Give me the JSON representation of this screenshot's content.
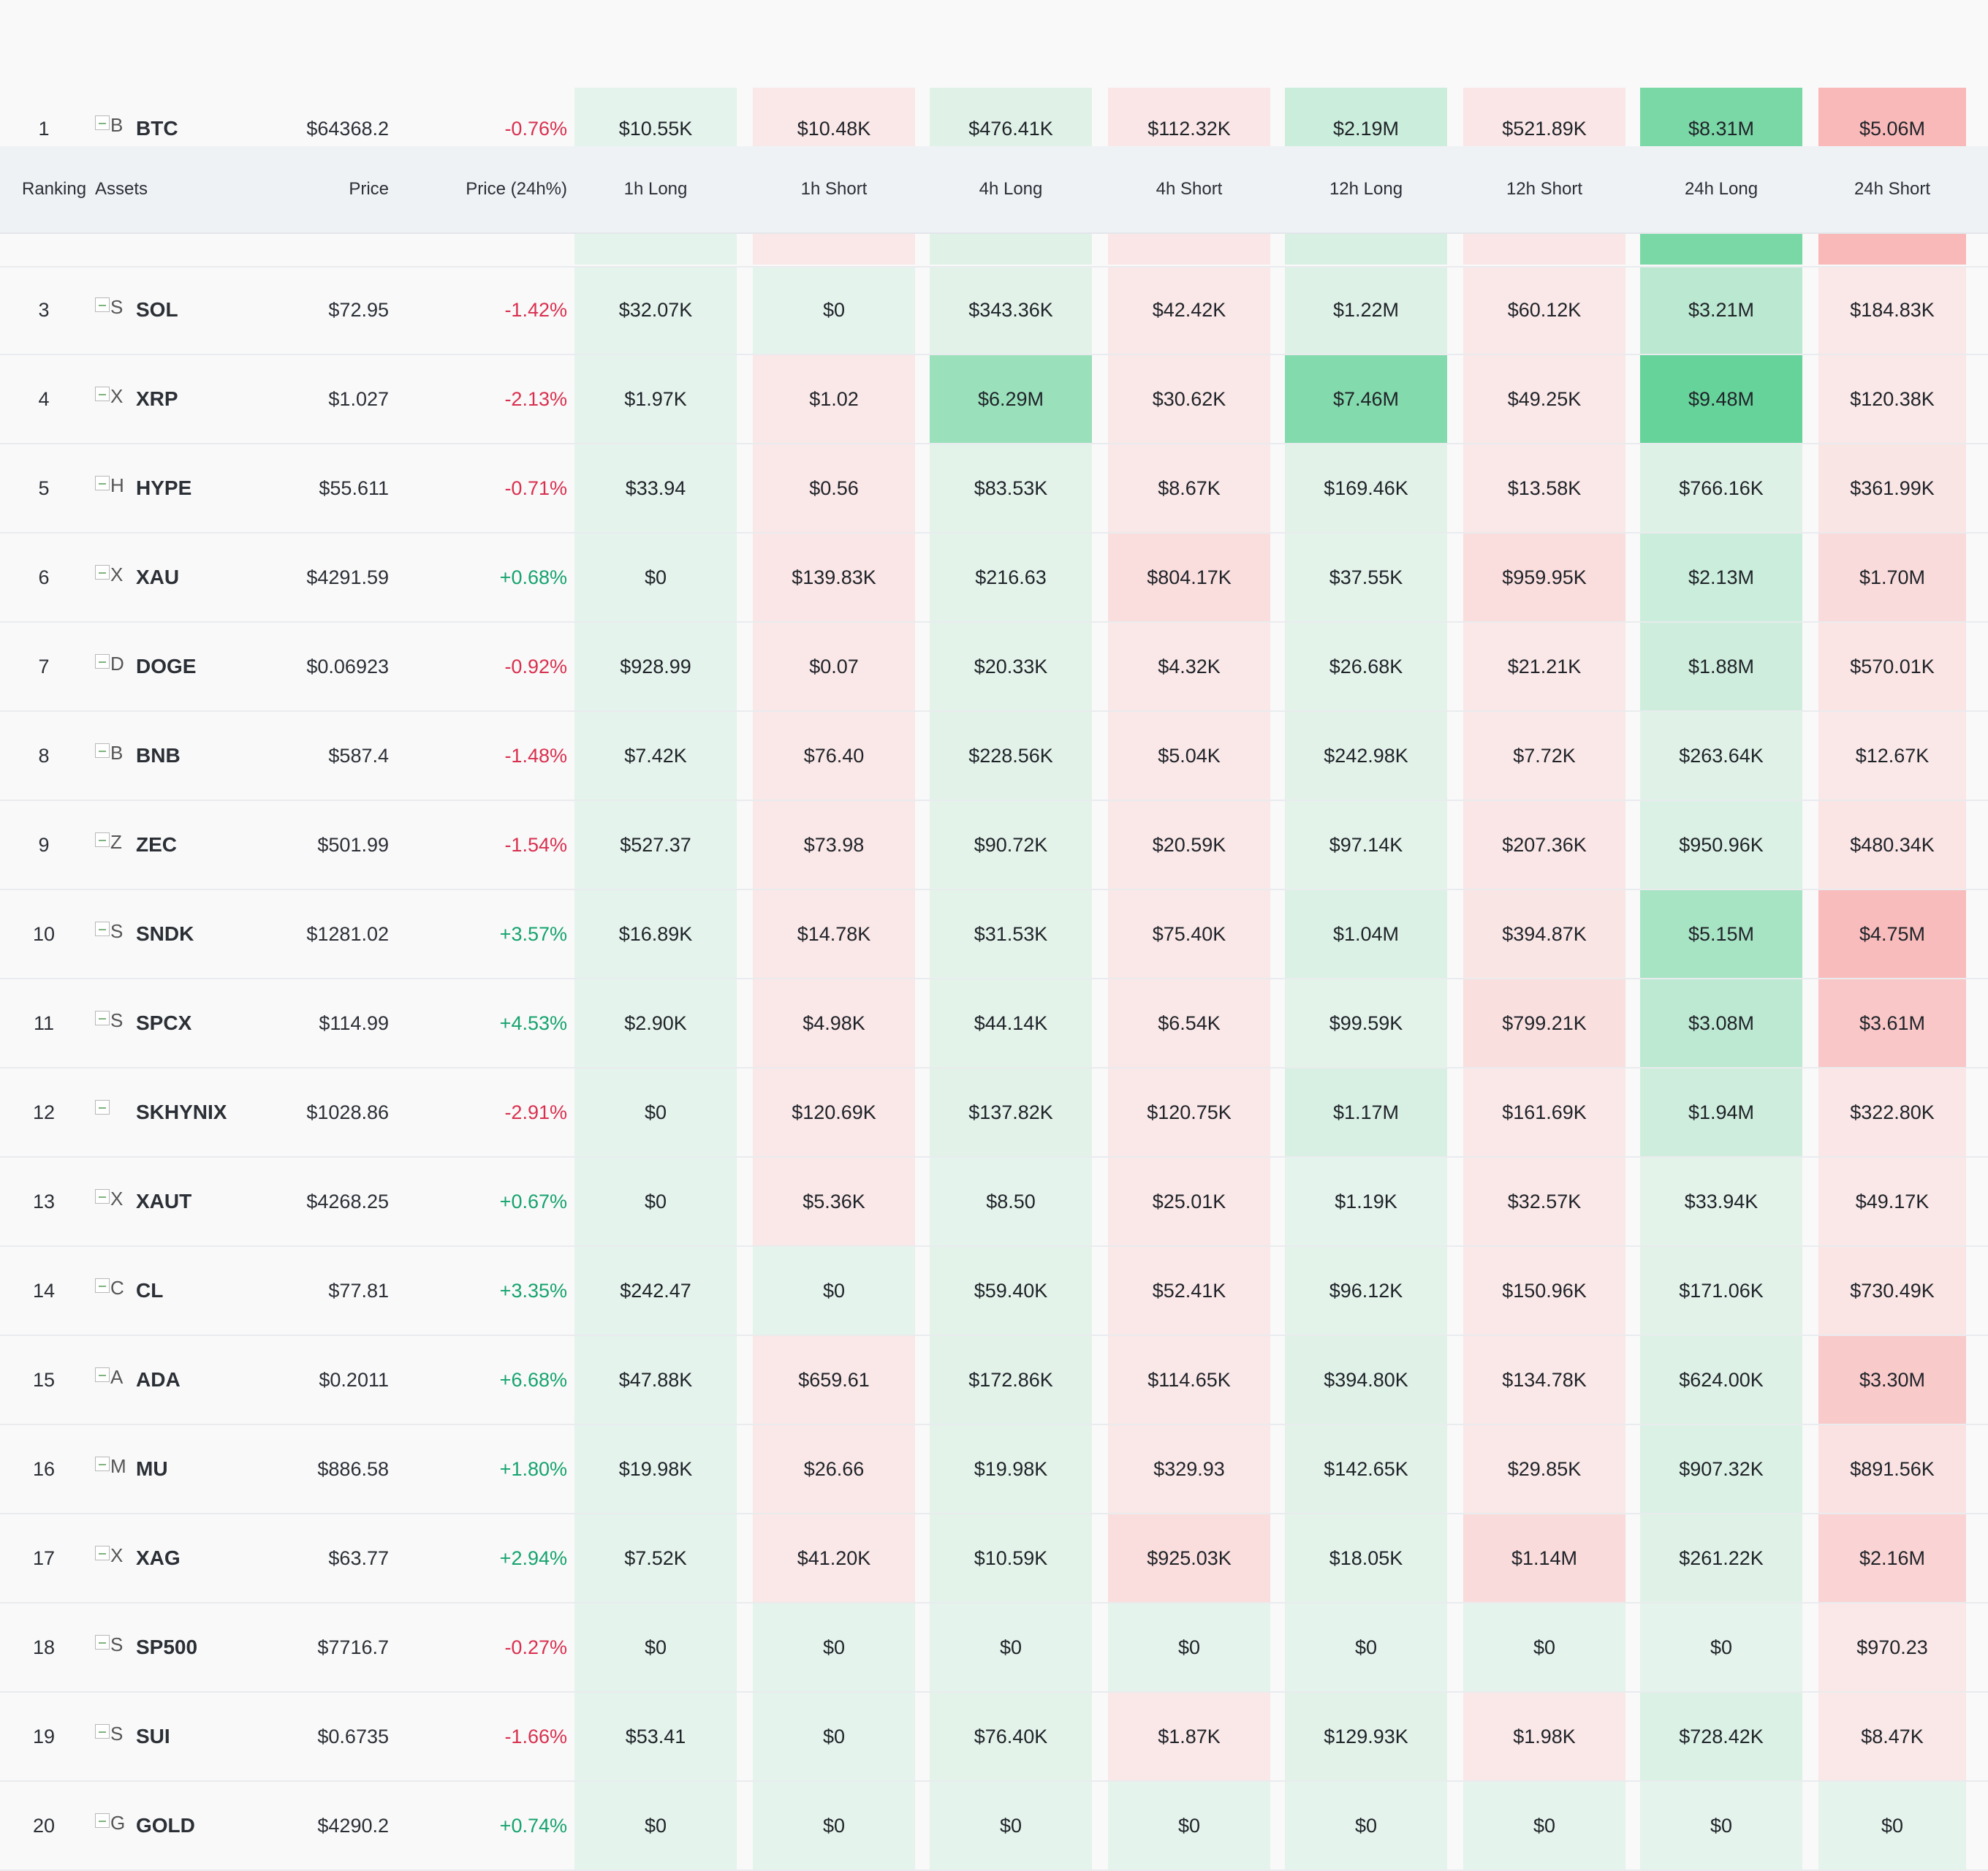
{
  "table": {
    "columns": {
      "ranking": "Ranking",
      "assets": "Assets",
      "price": "Price",
      "change": "Price (24h%)",
      "h1_long": "1h Long",
      "h1_short": "1h Short",
      "h4_long": "4h Long",
      "h4_short": "4h Short",
      "h12_long": "12h Long",
      "h12_short": "12h Short",
      "h24_long": "24h Long",
      "h24_short": "24h Short"
    },
    "colors": {
      "long_base": "#e8f4ed",
      "long_strong": "#66d39a",
      "short_base": "#faeaea",
      "short_strong": "#f9b4b4",
      "negative_text": "#d9304f",
      "positive_text": "#16a36f"
    },
    "rows": [
      {
        "rank": "1",
        "logo_alt": "B",
        "symbol": "BTC",
        "price": "$64368.2",
        "change": "-0.76%",
        "cells": [
          "$10.55K",
          "$10.48K",
          "$476.41K",
          "$112.32K",
          "$2.19M",
          "$521.89K",
          "$8.31M",
          "$5.06M"
        ],
        "tones": [
          [
            "L",
            0.03
          ],
          [
            "S",
            0.05
          ],
          [
            "L",
            0.06
          ],
          [
            "S",
            0.08
          ],
          [
            "L",
            0.22
          ],
          [
            "S",
            0.08
          ],
          [
            "L",
            0.85
          ],
          [
            "S",
            0.9
          ]
        ]
      },
      {
        "rank": "3",
        "logo_alt": "S",
        "symbol": "SOL",
        "price": "$72.95",
        "change": "-1.42%",
        "cells": [
          "$32.07K",
          "$0",
          "$343.36K",
          "$42.42K",
          "$1.22M",
          "$60.12K",
          "$3.21M",
          "$184.83K"
        ],
        "tones": [
          [
            "L",
            0.03
          ],
          [
            "L",
            0.03
          ],
          [
            "L",
            0.05
          ],
          [
            "S",
            0.05
          ],
          [
            "L",
            0.08
          ],
          [
            "S",
            0.05
          ],
          [
            "L",
            0.35
          ],
          [
            "S",
            0.06
          ]
        ]
      },
      {
        "rank": "4",
        "logo_alt": "X",
        "symbol": "XRP",
        "price": "$1.027",
        "change": "-2.13%",
        "cells": [
          "$1.97K",
          "$1.02",
          "$6.29M",
          "$30.62K",
          "$7.46M",
          "$49.25K",
          "$9.48M",
          "$120.38K"
        ],
        "tones": [
          [
            "L",
            0.03
          ],
          [
            "S",
            0.05
          ],
          [
            "L",
            0.6
          ],
          [
            "S",
            0.05
          ],
          [
            "L",
            0.78
          ],
          [
            "S",
            0.05
          ],
          [
            "L",
            1.0
          ],
          [
            "S",
            0.06
          ]
        ]
      },
      {
        "rank": "5",
        "logo_alt": "H",
        "symbol": "HYPE",
        "price": "$55.611",
        "change": "-0.71%",
        "cells": [
          "$33.94",
          "$0.56",
          "$83.53K",
          "$8.67K",
          "$169.46K",
          "$13.58K",
          "$766.16K",
          "$361.99K"
        ],
        "tones": [
          [
            "L",
            0.03
          ],
          [
            "S",
            0.05
          ],
          [
            "L",
            0.04
          ],
          [
            "S",
            0.05
          ],
          [
            "L",
            0.05
          ],
          [
            "S",
            0.05
          ],
          [
            "L",
            0.08
          ],
          [
            "S",
            0.1
          ]
        ]
      },
      {
        "rank": "6",
        "logo_alt": "X",
        "symbol": "XAU",
        "price": "$4291.59",
        "change": "+0.68%",
        "cells": [
          "$0",
          "$139.83K",
          "$216.63",
          "$804.17K",
          "$37.55K",
          "$959.95K",
          "$2.13M",
          "$1.70M"
        ],
        "tones": [
          [
            "L",
            0.03
          ],
          [
            "S",
            0.07
          ],
          [
            "L",
            0.04
          ],
          [
            "S",
            0.22
          ],
          [
            "L",
            0.04
          ],
          [
            "S",
            0.25
          ],
          [
            "L",
            0.22
          ],
          [
            "S",
            0.28
          ]
        ]
      },
      {
        "rank": "7",
        "logo_alt": "D",
        "symbol": "DOGE",
        "price": "$0.06923",
        "change": "-0.92%",
        "cells": [
          "$928.99",
          "$0.07",
          "$20.33K",
          "$4.32K",
          "$26.68K",
          "$21.21K",
          "$1.88M",
          "$570.01K"
        ],
        "tones": [
          [
            "L",
            0.03
          ],
          [
            "S",
            0.05
          ],
          [
            "L",
            0.04
          ],
          [
            "S",
            0.05
          ],
          [
            "L",
            0.04
          ],
          [
            "S",
            0.05
          ],
          [
            "L",
            0.2
          ],
          [
            "S",
            0.12
          ]
        ]
      },
      {
        "rank": "8",
        "logo_alt": "B",
        "symbol": "BNB",
        "price": "$587.4",
        "change": "-1.48%",
        "cells": [
          "$7.42K",
          "$76.40",
          "$228.56K",
          "$5.04K",
          "$242.98K",
          "$7.72K",
          "$263.64K",
          "$12.67K"
        ],
        "tones": [
          [
            "L",
            0.03
          ],
          [
            "S",
            0.05
          ],
          [
            "L",
            0.05
          ],
          [
            "S",
            0.05
          ],
          [
            "L",
            0.05
          ],
          [
            "S",
            0.05
          ],
          [
            "L",
            0.06
          ],
          [
            "S",
            0.05
          ]
        ]
      },
      {
        "rank": "9",
        "logo_alt": "Z",
        "symbol": "ZEC",
        "price": "$501.99",
        "change": "-1.54%",
        "cells": [
          "$527.37",
          "$73.98",
          "$90.72K",
          "$20.59K",
          "$97.14K",
          "$207.36K",
          "$950.96K",
          "$480.34K"
        ],
        "tones": [
          [
            "L",
            0.03
          ],
          [
            "S",
            0.05
          ],
          [
            "L",
            0.04
          ],
          [
            "S",
            0.05
          ],
          [
            "L",
            0.04
          ],
          [
            "S",
            0.07
          ],
          [
            "L",
            0.1
          ],
          [
            "S",
            0.11
          ]
        ]
      },
      {
        "rank": "10",
        "logo_alt": "S",
        "symbol": "SNDK",
        "price": "$1281.02",
        "change": "+3.57%",
        "cells": [
          "$16.89K",
          "$14.78K",
          "$31.53K",
          "$75.40K",
          "$1.04M",
          "$394.87K",
          "$5.15M",
          "$4.75M"
        ],
        "tones": [
          [
            "L",
            0.03
          ],
          [
            "S",
            0.05
          ],
          [
            "L",
            0.04
          ],
          [
            "S",
            0.06
          ],
          [
            "L",
            0.1
          ],
          [
            "S",
            0.1
          ],
          [
            "L",
            0.5
          ],
          [
            "S",
            0.85
          ]
        ]
      },
      {
        "rank": "11",
        "logo_alt": "S",
        "symbol": "SPCX",
        "price": "$114.99",
        "change": "+4.53%",
        "cells": [
          "$2.90K",
          "$4.98K",
          "$44.14K",
          "$6.54K",
          "$99.59K",
          "$799.21K",
          "$3.08M",
          "$3.61M"
        ],
        "tones": [
          [
            "L",
            0.03
          ],
          [
            "S",
            0.05
          ],
          [
            "L",
            0.04
          ],
          [
            "S",
            0.05
          ],
          [
            "L",
            0.04
          ],
          [
            "S",
            0.2
          ],
          [
            "L",
            0.33
          ],
          [
            "S",
            0.65
          ]
        ]
      },
      {
        "rank": "12",
        "logo_alt": "",
        "symbol": "SKHYNIX",
        "price": "$1028.86",
        "change": "-2.91%",
        "cells": [
          "$0",
          "$120.69K",
          "$137.82K",
          "$120.75K",
          "$1.17M",
          "$161.69K",
          "$1.94M",
          "$322.80K"
        ],
        "tones": [
          [
            "L",
            0.03
          ],
          [
            "S",
            0.06
          ],
          [
            "L",
            0.05
          ],
          [
            "S",
            0.06
          ],
          [
            "L",
            0.12
          ],
          [
            "S",
            0.06
          ],
          [
            "L",
            0.2
          ],
          [
            "S",
            0.08
          ]
        ]
      },
      {
        "rank": "13",
        "logo_alt": "X",
        "symbol": "XAUT",
        "price": "$4268.25",
        "change": "+0.67%",
        "cells": [
          "$0",
          "$5.36K",
          "$8.50",
          "$25.01K",
          "$1.19K",
          "$32.57K",
          "$33.94K",
          "$49.17K"
        ],
        "tones": [
          [
            "L",
            0.03
          ],
          [
            "S",
            0.05
          ],
          [
            "L",
            0.03
          ],
          [
            "S",
            0.05
          ],
          [
            "L",
            0.03
          ],
          [
            "S",
            0.05
          ],
          [
            "L",
            0.04
          ],
          [
            "S",
            0.05
          ]
        ]
      },
      {
        "rank": "14",
        "logo_alt": "C",
        "symbol": "CL",
        "price": "$77.81",
        "change": "+3.35%",
        "cells": [
          "$242.47",
          "$0",
          "$59.40K",
          "$52.41K",
          "$96.12K",
          "$150.96K",
          "$171.06K",
          "$730.49K"
        ],
        "tones": [
          [
            "L",
            0.03
          ],
          [
            "L",
            0.03
          ],
          [
            "L",
            0.04
          ],
          [
            "S",
            0.05
          ],
          [
            "L",
            0.04
          ],
          [
            "S",
            0.06
          ],
          [
            "L",
            0.05
          ],
          [
            "S",
            0.12
          ]
        ]
      },
      {
        "rank": "15",
        "logo_alt": "A",
        "symbol": "ADA",
        "price": "$0.2011",
        "change": "+6.68%",
        "cells": [
          "$47.88K",
          "$659.61",
          "$172.86K",
          "$114.65K",
          "$394.80K",
          "$134.78K",
          "$624.00K",
          "$3.30M"
        ],
        "tones": [
          [
            "L",
            0.03
          ],
          [
            "S",
            0.05
          ],
          [
            "L",
            0.05
          ],
          [
            "S",
            0.06
          ],
          [
            "L",
            0.06
          ],
          [
            "S",
            0.06
          ],
          [
            "L",
            0.08
          ],
          [
            "S",
            0.6
          ]
        ]
      },
      {
        "rank": "16",
        "logo_alt": "M",
        "symbol": "MU",
        "price": "$886.58",
        "change": "+1.80%",
        "cells": [
          "$19.98K",
          "$26.66",
          "$19.98K",
          "$329.93",
          "$142.65K",
          "$29.85K",
          "$907.32K",
          "$891.56K"
        ],
        "tones": [
          [
            "L",
            0.03
          ],
          [
            "S",
            0.05
          ],
          [
            "L",
            0.04
          ],
          [
            "S",
            0.05
          ],
          [
            "L",
            0.05
          ],
          [
            "S",
            0.05
          ],
          [
            "L",
            0.1
          ],
          [
            "S",
            0.14
          ]
        ]
      },
      {
        "rank": "17",
        "logo_alt": "X",
        "symbol": "XAG",
        "price": "$63.77",
        "change": "+2.94%",
        "cells": [
          "$7.52K",
          "$41.20K",
          "$10.59K",
          "$925.03K",
          "$18.05K",
          "$1.14M",
          "$261.22K",
          "$2.16M"
        ],
        "tones": [
          [
            "L",
            0.03
          ],
          [
            "S",
            0.05
          ],
          [
            "L",
            0.04
          ],
          [
            "S",
            0.24
          ],
          [
            "L",
            0.04
          ],
          [
            "S",
            0.28
          ],
          [
            "L",
            0.06
          ],
          [
            "S",
            0.4
          ]
        ]
      },
      {
        "rank": "18",
        "logo_alt": "S",
        "symbol": "SP500",
        "price": "$7716.7",
        "change": "-0.27%",
        "cells": [
          "$0",
          "$0",
          "$0",
          "$0",
          "$0",
          "$0",
          "$0",
          "$970.23"
        ],
        "tones": [
          [
            "L",
            0.03
          ],
          [
            "L",
            0.03
          ],
          [
            "L",
            0.03
          ],
          [
            "L",
            0.03
          ],
          [
            "L",
            0.03
          ],
          [
            "L",
            0.03
          ],
          [
            "L",
            0.03
          ],
          [
            "S",
            0.05
          ]
        ]
      },
      {
        "rank": "19",
        "logo_alt": "S",
        "symbol": "SUI",
        "price": "$0.6735",
        "change": "-1.66%",
        "cells": [
          "$53.41",
          "$0",
          "$76.40K",
          "$1.87K",
          "$129.93K",
          "$1.98K",
          "$728.42K",
          "$8.47K"
        ],
        "tones": [
          [
            "L",
            0.03
          ],
          [
            "L",
            0.03
          ],
          [
            "L",
            0.04
          ],
          [
            "S",
            0.05
          ],
          [
            "L",
            0.05
          ],
          [
            "S",
            0.05
          ],
          [
            "L",
            0.1
          ],
          [
            "S",
            0.05
          ]
        ]
      },
      {
        "rank": "20",
        "logo_alt": "G",
        "symbol": "GOLD",
        "price": "$4290.2",
        "change": "+0.74%",
        "cells": [
          "$0",
          "$0",
          "$0",
          "$0",
          "$0",
          "$0",
          "$0",
          "$0"
        ],
        "tones": [
          [
            "L",
            0.03
          ],
          [
            "L",
            0.03
          ],
          [
            "L",
            0.03
          ],
          [
            "L",
            0.03
          ],
          [
            "L",
            0.03
          ],
          [
            "L",
            0.03
          ],
          [
            "L",
            0.03
          ],
          [
            "L",
            0.03
          ]
        ]
      }
    ],
    "hidden_row_tones": [
      [
        "L",
        0.03
      ],
      [
        "S",
        0.05
      ],
      [
        "L",
        0.06
      ],
      [
        "S",
        0.07
      ],
      [
        "L",
        0.12
      ],
      [
        "S",
        0.08
      ],
      [
        "L",
        0.85
      ],
      [
        "S",
        0.9
      ]
    ]
  }
}
